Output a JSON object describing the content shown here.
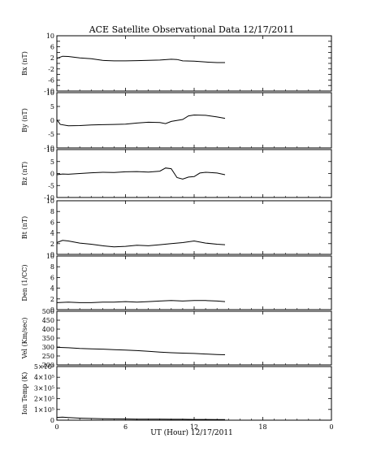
{
  "title": "ACE Satellite Observational Data   12/17/2011",
  "x_axis": {
    "label": "UT (Hour)  12/17/2011",
    "ticks": [
      "0",
      "6",
      "12",
      "18",
      "0"
    ]
  },
  "chart_data": [
    {
      "type": "line",
      "ylabel": "Bx (nT)",
      "ylim": [
        -10,
        10
      ],
      "xlim": [
        0,
        24
      ],
      "ytick_labels": [
        "10",
        "6",
        "2",
        "-2",
        "-6",
        "-10"
      ],
      "ytick_values": [
        10,
        8,
        6,
        4,
        2,
        0,
        -2,
        -4,
        -6,
        -8,
        -10
      ],
      "x": [
        0,
        0.5,
        1,
        2,
        3,
        4,
        5,
        6,
        7,
        8,
        9,
        10,
        10.5,
        11,
        12,
        13,
        14,
        14.7
      ],
      "values": [
        1.8,
        2.6,
        2.5,
        2.0,
        1.7,
        1.1,
        0.9,
        0.9,
        1.0,
        1.1,
        1.2,
        1.5,
        1.4,
        0.9,
        0.8,
        0.5,
        0.3,
        0.3
      ]
    },
    {
      "type": "line",
      "ylabel": "By (nT)",
      "ylim": [
        -10,
        10
      ],
      "xlim": [
        0,
        24
      ],
      "ytick_labels": [
        "10",
        "5",
        "0",
        "-5",
        "-10"
      ],
      "ytick_values": [
        10,
        5,
        0,
        -5,
        -10
      ],
      "x": [
        0,
        0.3,
        1,
        2,
        3,
        4,
        5,
        6,
        7,
        8,
        9,
        9.5,
        10,
        11,
        11.5,
        12,
        13,
        14,
        14.7
      ],
      "values": [
        0.2,
        -1.5,
        -2.0,
        -1.9,
        -1.7,
        -1.6,
        -1.5,
        -1.4,
        -1.0,
        -0.7,
        -0.8,
        -1.2,
        -0.4,
        0.3,
        1.6,
        1.9,
        1.8,
        1.2,
        0.7
      ]
    },
    {
      "type": "line",
      "ylabel": "Bz (nT)",
      "ylim": [
        -10,
        10
      ],
      "xlim": [
        0,
        24
      ],
      "ytick_labels": [
        "10",
        "5",
        "0",
        "-5",
        "-10"
      ],
      "ytick_values": [
        10,
        5,
        0,
        -5,
        -10
      ],
      "x": [
        0,
        0.5,
        1,
        2,
        3,
        4,
        5,
        6,
        7,
        8,
        9,
        9.5,
        10,
        10.5,
        11,
        11.5,
        12,
        12.5,
        13,
        14,
        14.7
      ],
      "values": [
        -0.5,
        -0.2,
        -0.3,
        0.0,
        0.3,
        0.5,
        0.4,
        0.7,
        0.8,
        0.6,
        1.0,
        2.3,
        2.0,
        -1.7,
        -2.3,
        -1.5,
        -1.3,
        0.2,
        0.5,
        0.2,
        -0.5
      ]
    },
    {
      "type": "line",
      "ylabel": "Bt (nT)",
      "ylim": [
        0,
        10
      ],
      "xlim": [
        0,
        24
      ],
      "ytick_labels": [
        "10",
        "8",
        "6",
        "4",
        "2",
        "0"
      ],
      "ytick_values": [
        10,
        8,
        6,
        4,
        2,
        0
      ],
      "x": [
        0,
        0.5,
        1,
        2,
        3,
        4,
        5,
        6,
        7,
        8,
        9,
        10,
        11,
        12,
        13,
        14,
        14.7
      ],
      "values": [
        2.2,
        2.6,
        2.5,
        2.1,
        1.9,
        1.6,
        1.4,
        1.5,
        1.7,
        1.6,
        1.8,
        2.0,
        2.2,
        2.5,
        2.1,
        1.9,
        1.8
      ]
    },
    {
      "type": "line",
      "ylabel": "Den (1/CC)",
      "ylim": [
        0,
        10
      ],
      "xlim": [
        0,
        24
      ],
      "ytick_labels": [
        "10",
        "8",
        "6",
        "4",
        "2",
        "0"
      ],
      "ytick_values": [
        10,
        8,
        6,
        4,
        2,
        0
      ],
      "x": [
        0,
        1,
        2,
        3,
        4,
        5,
        6,
        7,
        8,
        9,
        10,
        11,
        12,
        13,
        14,
        14.7
      ],
      "values": [
        1.3,
        1.4,
        1.3,
        1.3,
        1.4,
        1.4,
        1.5,
        1.4,
        1.5,
        1.6,
        1.7,
        1.6,
        1.7,
        1.7,
        1.6,
        1.5
      ]
    },
    {
      "type": "line",
      "ylabel": "Vel (Km/sec)",
      "ylim": [
        200,
        500
      ],
      "xlim": [
        0,
        24
      ],
      "ytick_labels": [
        "500",
        "450",
        "400",
        "350",
        "300",
        "250",
        "200"
      ],
      "ytick_values": [
        500,
        450,
        400,
        350,
        300,
        250,
        200
      ],
      "x": [
        0,
        1,
        2,
        3,
        4,
        5,
        6,
        7,
        8,
        9,
        10,
        11,
        12,
        13,
        14,
        14.7
      ],
      "values": [
        298,
        296,
        292,
        290,
        288,
        285,
        283,
        280,
        276,
        272,
        268,
        266,
        264,
        261,
        258,
        257
      ]
    },
    {
      "type": "line",
      "ylabel": "Ion Temp (K)",
      "ylim": [
        0,
        500000
      ],
      "xlim": [
        0,
        24
      ],
      "ytick_labels": [
        "5×10⁵",
        "4×10⁵",
        "3×10⁵",
        "2×10⁵",
        "1×10⁵",
        "0"
      ],
      "ytick_values": [
        500000,
        400000,
        300000,
        200000,
        100000,
        0
      ],
      "x": [
        0,
        0.5,
        1,
        2,
        3,
        4,
        5,
        6,
        7,
        8,
        9,
        10,
        11,
        12,
        13,
        14,
        14.7
      ],
      "values": [
        26000,
        28000,
        24000,
        19000,
        16000,
        14000,
        12000,
        11000,
        10000,
        10000,
        9000,
        8000,
        8000,
        7000,
        7000,
        6000,
        6000
      ]
    }
  ]
}
